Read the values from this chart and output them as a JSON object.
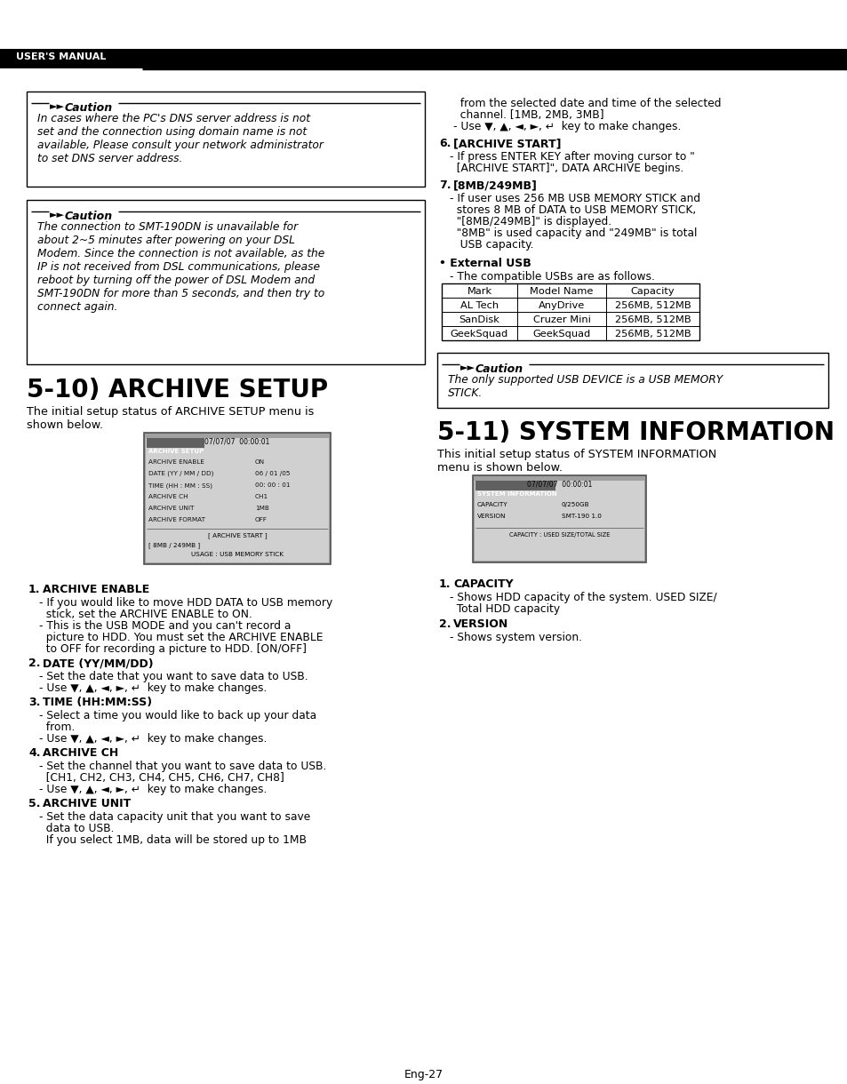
{
  "page_bg": "#ffffff",
  "header_text": "USER'S MANUAL",
  "footer_text": "Eng-27",
  "caution_box1_text": "In cases where the PC's DNS server address is not\nset and the connection using domain name is not\navailable, Please consult your network administrator\nto set DNS server address.",
  "caution_box2_text": "The connection to SMT-190DN is unavailable for\nabout 2~5 minutes after powering on your DSL\nModem. Since the connection is not available, as the\nIP is not received from DSL communications, please\nreboot by turning off the power of DSL Modem and\nSMT-190DN for more than 5 seconds, and then try to\nconnect again.",
  "section1_title": "5-10) ARCHIVE SETUP",
  "section1_intro": "The initial setup status of ARCHIVE SETUP menu is\nshown below.",
  "archive_screen_time": "07/07/07  00:00:01",
  "archive_screen_tab": "ARCHIVE SETUP",
  "archive_screen_lines": [
    [
      "ARCHIVE ENABLE",
      "ON"
    ],
    [
      "DATE (YY / MM / DD)",
      "06 / 01 /05"
    ],
    [
      "TIME (HH : MM : SS)",
      "00: 00 : 01"
    ],
    [
      "ARCHIVE CH",
      "CH1"
    ],
    [
      "ARCHIVE UNIT",
      "1MB"
    ],
    [
      "ARCHIVE FORMAT",
      "OFF"
    ]
  ],
  "archive_screen_bottom1": "[ ARCHIVE START ]",
  "archive_screen_bottom2": "[ 8MB / 249MB ]",
  "archive_screen_bottom3": "USAGE : USB MEMORY STICK",
  "items_left": [
    {
      "num": "1.",
      "title": "ARCHIVE ENABLE",
      "lines": [
        "- If you would like to move HDD DATA to USB memory",
        "  stick, set the ARCHIVE ENABLE to ON.",
        "- This is the USB MODE and you can't record a",
        "  picture to HDD. You must set the ARCHIVE ENABLE",
        "  to OFF for recording a picture to HDD. [ON/OFF]"
      ]
    },
    {
      "num": "2.",
      "title": "DATE (YY/MM/DD)",
      "lines": [
        "- Set the date that you want to save data to USB.",
        "- Use ▼, ▲, ◄, ►, ↵  key to make changes."
      ]
    },
    {
      "num": "3.",
      "title": "TIME (HH:MM:SS)",
      "lines": [
        "- Select a time you would like to back up your data",
        "  from.",
        "- Use ▼, ▲, ◄, ►, ↵  key to make changes."
      ]
    },
    {
      "num": "4.",
      "title": "ARCHIVE CH",
      "lines": [
        "- Set the channel that you want to save data to USB.",
        "  [CH1, CH2, CH3, CH4, CH5, CH6, CH7, CH8]",
        "- Use ▼, ▲, ◄, ►, ↵  key to make changes."
      ]
    },
    {
      "num": "5.",
      "title": "ARCHIVE UNIT",
      "lines": [
        "- Set the data capacity unit that you want to save",
        "  data to USB.",
        "  If you select 1MB, data will be stored up to 1MB"
      ]
    }
  ],
  "right_cont_lines": [
    "  from the selected date and time of the selected",
    "  channel. [1MB, 2MB, 3MB]",
    "- Use ▼, ▲, ◄, ►, ↵  key to make changes."
  ],
  "items_right_top": [
    {
      "num": "6.",
      "title": "[ARCHIVE START]",
      "lines": [
        "- If press ENTER KEY after moving cursor to \"",
        "  [ARCHIVE START]\", DATA ARCHIVE begins."
      ]
    },
    {
      "num": "7.",
      "title": "[8MB/249MB]",
      "lines": [
        "- If user uses 256 MB USB MEMORY STICK and",
        "  stores 8 MB of DATA to USB MEMORY STICK,",
        "  \"[8MB/249MB]\" is displayed.",
        "  \"8MB\" is used capacity and \"249MB\" is total",
        "   USB capacity."
      ]
    }
  ],
  "ext_usb_title": "• External USB",
  "ext_usb_sub": "- The compatible USBs are as follows.",
  "usb_headers": [
    "Mark",
    "Model Name",
    "Capacity"
  ],
  "usb_rows": [
    [
      "AL Tech",
      "AnyDrive",
      "256MB, 512MB"
    ],
    [
      "SanDisk",
      "Cruzer Mini",
      "256MB, 512MB"
    ],
    [
      "GeekSquad",
      "GeekSquad",
      "256MB, 512MB"
    ]
  ],
  "caution3_text": "The only supported USB DEVICE is a USB MEMORY\nSTICK.",
  "section2_title": "5-11) SYSTEM INFORMATION",
  "section2_intro": "This initial setup status of SYSTEM INFORMATION\nmenu is shown below.",
  "si_time": "07/07/07  00:00:01",
  "si_tab": "SYSTEM INFORMATION",
  "si_lines": [
    [
      "CAPACITY",
      "0/250GB"
    ],
    [
      "VERSION",
      "SMT-190 1.0"
    ]
  ],
  "si_bottom": "CAPACITY : USED SIZE/TOTAL SIZE",
  "items_right_bot": [
    {
      "num": "1.",
      "title": "CAPACITY",
      "lines": [
        "- Shows HDD capacity of the system. USED SIZE/",
        "  Total HDD capacity"
      ]
    },
    {
      "num": "2.",
      "title": "VERSION",
      "lines": [
        "- Shows system version."
      ]
    }
  ]
}
